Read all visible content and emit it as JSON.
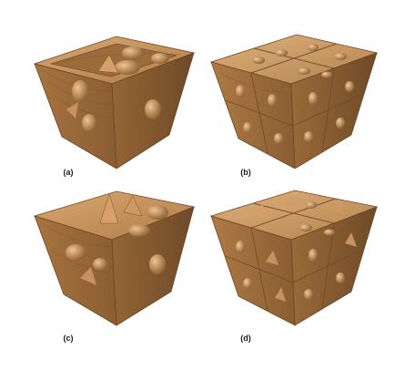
{
  "figure": {
    "panels": [
      {
        "id": "a",
        "caption": "(a)",
        "subdivision": "single",
        "accent": "#b5834f"
      },
      {
        "id": "b",
        "caption": "(b)",
        "subdivision": "grid",
        "accent": "#b98a56"
      },
      {
        "id": "c",
        "caption": "(c)",
        "subdivision": "single",
        "accent": "#b5834f"
      },
      {
        "id": "d",
        "caption": "(d)",
        "subdivision": "grid",
        "accent": "#b98a56"
      }
    ],
    "colors": {
      "wood_light": "#d9a872",
      "wood_mid": "#b5834f",
      "wood_dark": "#7a5430",
      "grain": "#8c5f35",
      "background": "#ffffff"
    }
  }
}
